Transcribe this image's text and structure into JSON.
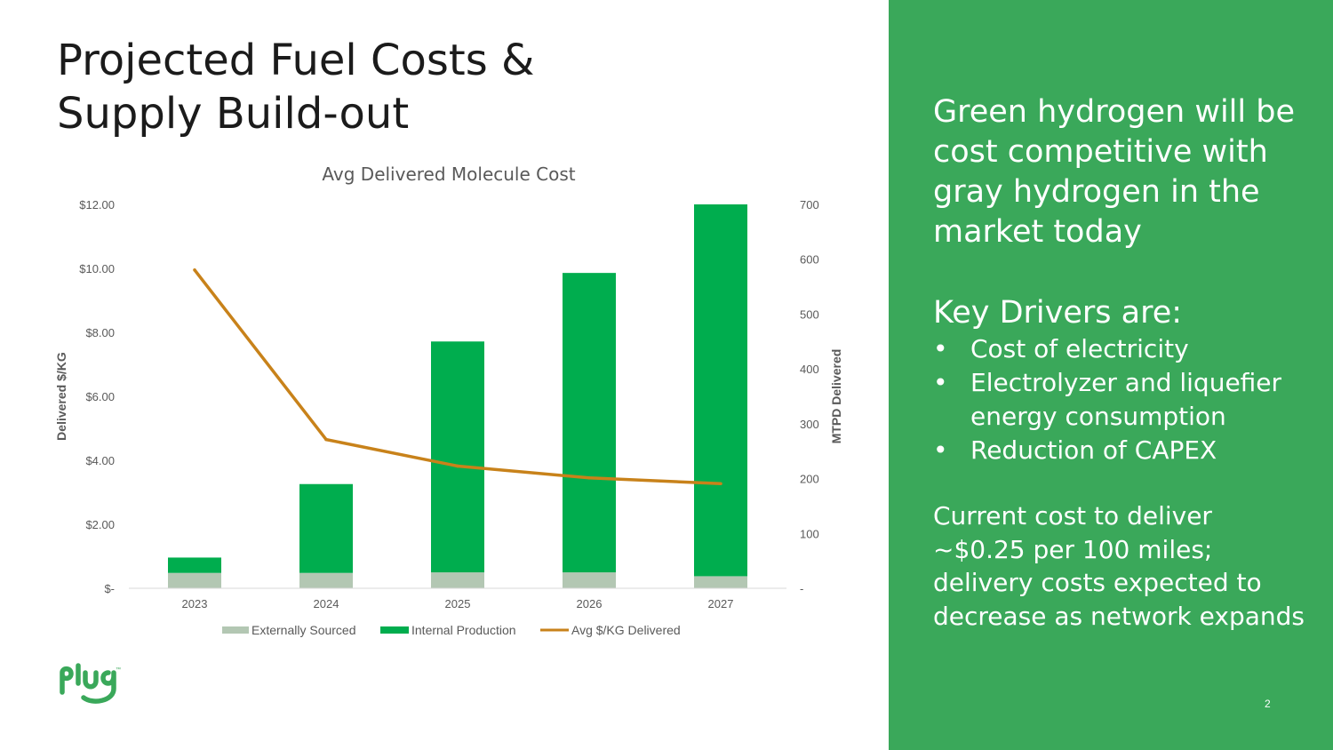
{
  "slide": {
    "title_line1": "Projected Fuel Costs &",
    "title_line2": "Supply Build-out",
    "page_number": "2",
    "logo_text": "plug"
  },
  "panel": {
    "headline": "Green hydrogen will be cost competitive with gray hydrogen in the market today",
    "drivers_heading": "Key Drivers are:",
    "drivers": [
      "Cost of electricity",
      "Electrolyzer and liquefier energy consumption",
      "Reduction of CAPEX"
    ],
    "bullet_char": "•",
    "cost_note": "Current cost to deliver ~$0.25 per 100 miles; delivery costs expected to decrease as network expands",
    "background_color": "#3aa85a"
  },
  "chart_data": {
    "type": "bar",
    "title": "Avg Delivered Molecule Cost",
    "categories": [
      "2023",
      "2024",
      "2025",
      "2026",
      "2027"
    ],
    "series": [
      {
        "name": "Externally Sourced",
        "kind": "bar",
        "axis": "right",
        "color": "#b3c7b3",
        "values": [
          28,
          28,
          29,
          29,
          22
        ]
      },
      {
        "name": "Internal Production",
        "kind": "bar",
        "axis": "right",
        "color": "#00ad4e",
        "values": [
          28,
          162,
          421,
          546,
          678
        ]
      },
      {
        "name": "Avg $/KG Delivered",
        "kind": "line",
        "axis": "left",
        "color": "#c8821a",
        "values": [
          9.95,
          4.65,
          3.82,
          3.45,
          3.27
        ]
      }
    ],
    "y_left": {
      "label": "Delivered $/KG",
      "min": 0,
      "max": 12,
      "ticks": [
        "$-",
        "$2.00",
        "$4.00",
        "$6.00",
        "$8.00",
        "$10.00",
        "$12.00"
      ]
    },
    "y_right": {
      "label": "MTPD Delivered",
      "min": 0,
      "max": 700,
      "ticks": [
        "-",
        "100",
        "200",
        "300",
        "400",
        "500",
        "600",
        "700"
      ]
    },
    "legend_position": "bottom",
    "grid": false
  }
}
